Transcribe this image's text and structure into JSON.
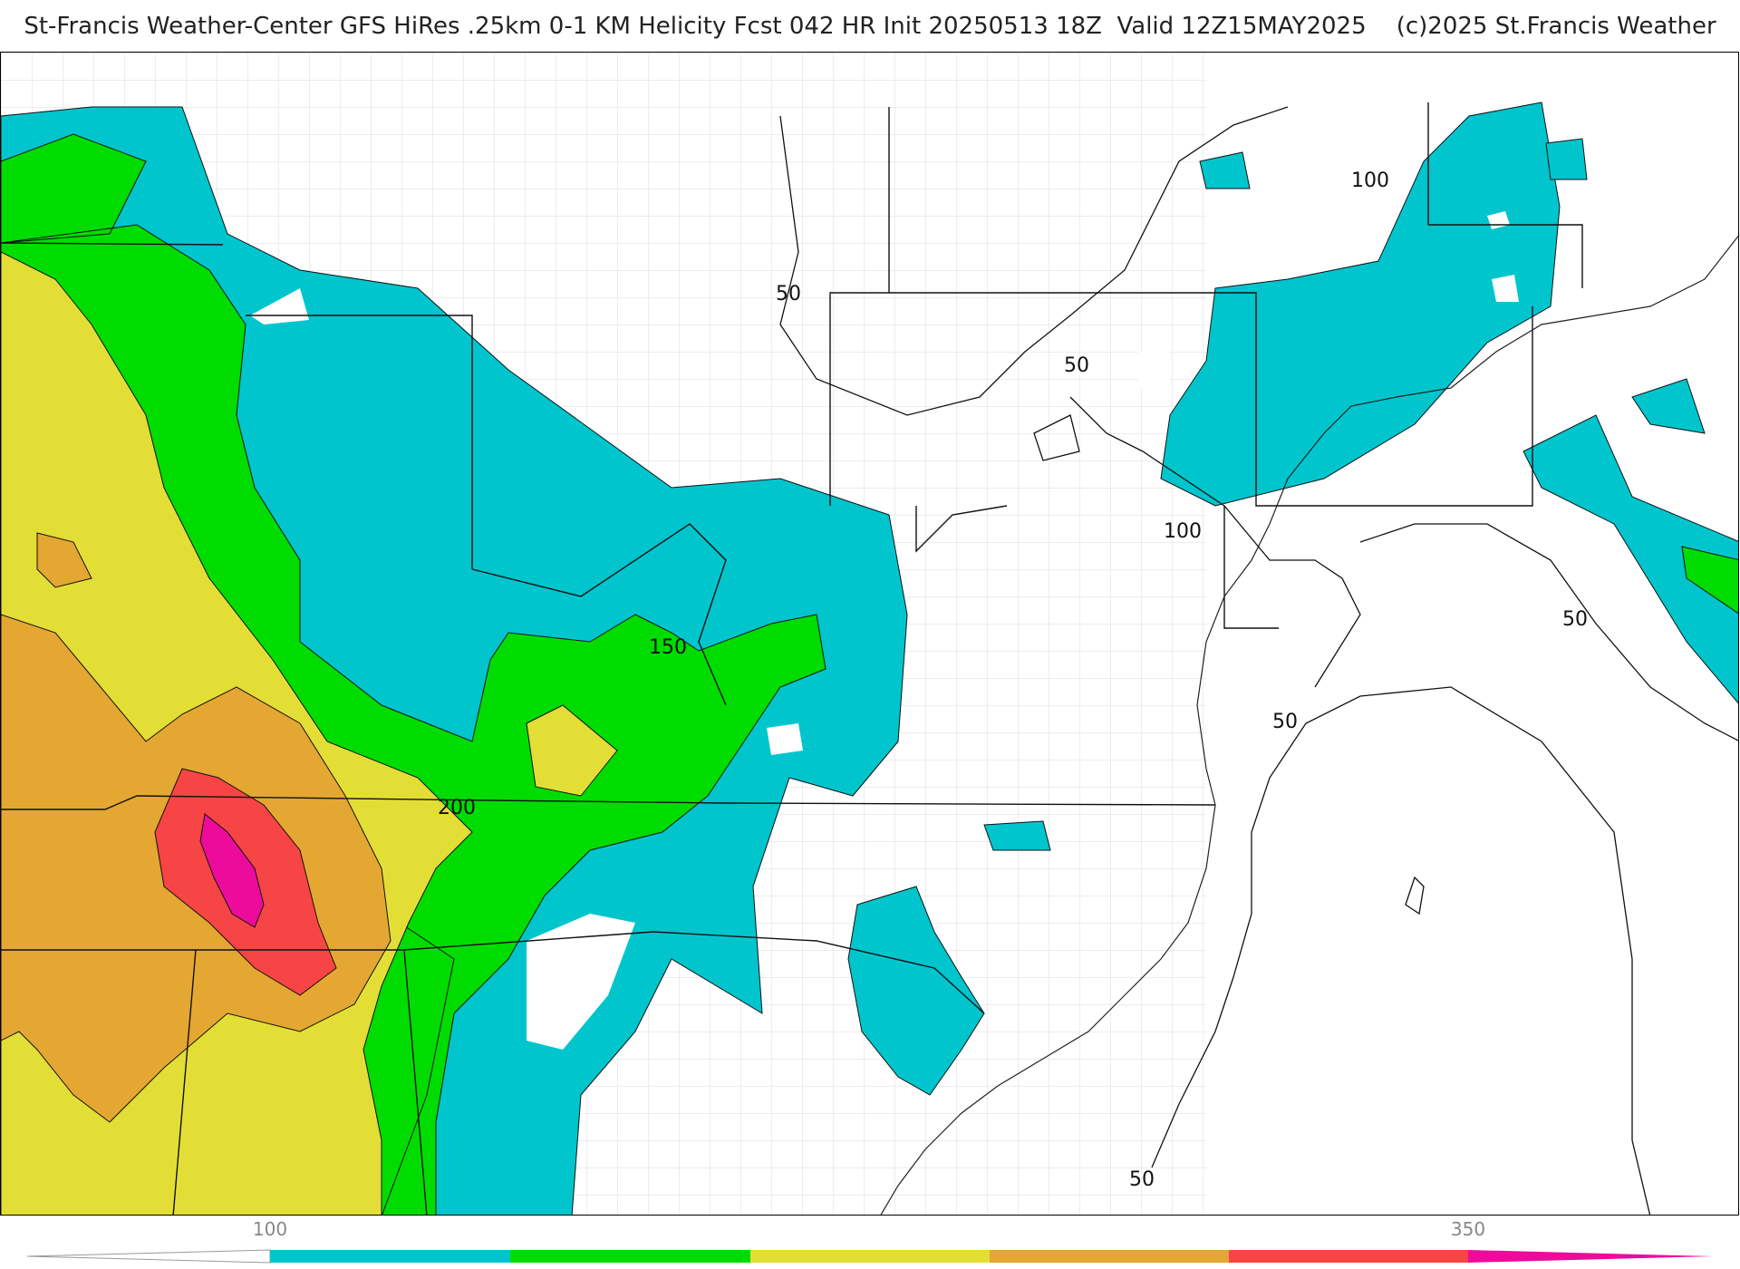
{
  "header": {
    "title": "St-Francis Weather-Center GFS HiRes .25km 0-1 KM Helicity Fcst 042 HR Init 20250513 18Z  Valid 12Z15MAY2025    (c)2025 St.Francis Weather"
  },
  "map": {
    "field": "0-1 KM Helicity",
    "contour_labels": [
      "50",
      "50",
      "50",
      "50",
      "50",
      "100",
      "100",
      "150",
      "200"
    ],
    "fill_colors": {
      "level_100": "#00c5cd",
      "level_150": "#00dc00",
      "level_200": "#e3de35",
      "level_250": "#e4a731",
      "level_300": "#f74444",
      "level_350": "#ec0b9b"
    },
    "line_color": "#111111",
    "county_line_color": "#c9c9c9"
  },
  "colorbar": {
    "tick_labels": [
      "100",
      "350"
    ],
    "colors": [
      "#00c5cd",
      "#00dc00",
      "#e3de35",
      "#e4a731",
      "#f74444",
      "#ec0b9b"
    ]
  }
}
